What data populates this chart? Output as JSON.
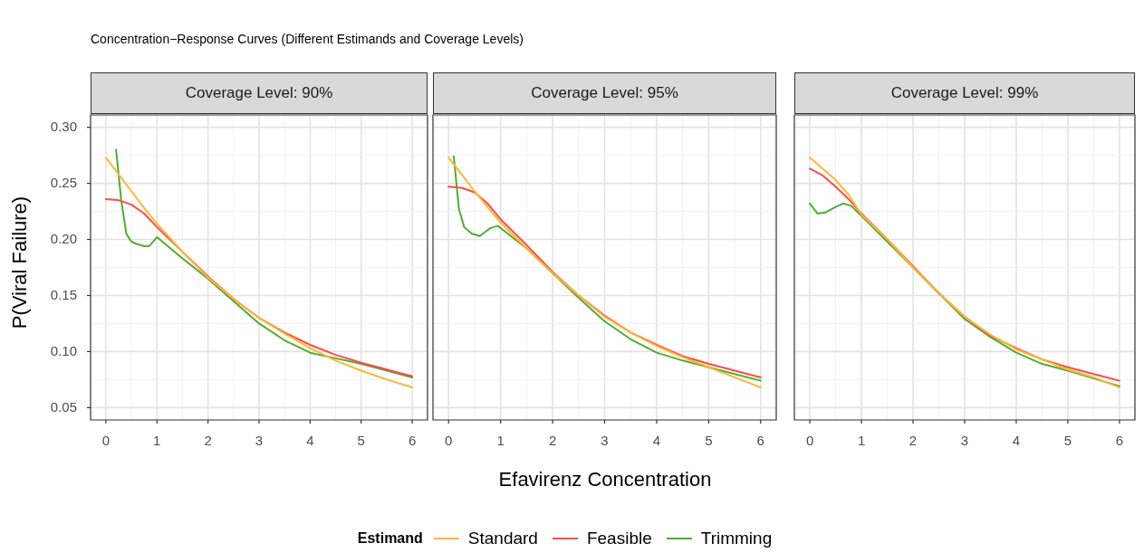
{
  "chart_data": [
    {
      "type": "line",
      "title": "Coverage Level: 90%",
      "ylabel": "P(Viral Failure)",
      "legend": "bottom",
      "legend_title": "Estimand",
      "annotations": [
        "Concentration−Response Curves (Different Estimands and Coverage Levels)"
      ],
      "xlim": [
        -0.3,
        6.3
      ],
      "ylim": [
        0.039,
        0.311
      ],
      "xticks": [
        0,
        {
          "value": 0.5,
          "label": null
        },
        1,
        {
          "value": 1.5,
          "label": null
        },
        2,
        {
          "value": 2.5,
          "label": null
        },
        3,
        {
          "value": 3.5,
          "label": null
        },
        4,
        {
          "value": 4.5,
          "label": null
        },
        5,
        {
          "value": 5.5,
          "label": null
        },
        6
      ],
      "yticks": [
        0.05,
        {
          "value": 0.075,
          "label": null
        },
        {
          "value": 0.1,
          "label": "0.10"
        },
        {
          "value": 0.125,
          "label": null
        },
        0.15,
        {
          "value": 0.175,
          "label": null
        },
        {
          "value": 0.2,
          "label": "0.20"
        },
        {
          "value": 0.225,
          "label": null
        },
        0.25,
        {
          "value": 0.275,
          "label": null
        },
        {
          "value": 0.3,
          "label": "0.30"
        }
      ],
      "grid": true,
      "line_style": "solid",
      "marker": "none",
      "series": [
        {
          "name": "Standard",
          "color": "#ffb631",
          "x": [
            0,
            0.25,
            0.5,
            0.75,
            1,
            1.5,
            2,
            2.5,
            3,
            3.5,
            4,
            4.5,
            5,
            5.5,
            6
          ],
          "values": [
            0.273,
            0.258,
            0.243,
            0.228,
            0.214,
            0.189,
            0.166,
            0.147,
            0.13,
            0.116,
            0.103,
            0.092,
            0.083,
            0.075,
            0.068
          ]
        },
        {
          "name": "Feasible",
          "color": "#ff4a4a",
          "x": [
            0,
            0.25,
            0.5,
            0.75,
            1,
            1.5,
            2,
            2.5,
            3,
            3.5,
            4,
            4.5,
            5,
            5.5,
            6
          ],
          "values": [
            0.236,
            0.235,
            0.231,
            0.223,
            0.211,
            0.189,
            0.167,
            0.147,
            0.13,
            0.117,
            0.106,
            0.097,
            0.09,
            0.084,
            0.078
          ]
        },
        {
          "name": "Trimming",
          "color": "#4fae2e",
          "x": [
            0.2,
            0.3,
            0.4,
            0.5,
            0.6,
            0.75,
            0.85,
            1,
            1.5,
            2,
            2.5,
            3,
            3.5,
            4,
            4.5,
            5,
            5.5,
            6
          ],
          "values": [
            0.28,
            0.235,
            0.205,
            0.198,
            0.196,
            0.194,
            0.194,
            0.202,
            0.183,
            0.165,
            0.145,
            0.125,
            0.11,
            0.099,
            0.094,
            0.089,
            0.083,
            0.077
          ]
        }
      ]
    },
    {
      "type": "line",
      "title": "Coverage Level: 95%",
      "xlabel": "Efavirenz Concentration",
      "tick_labels": "x",
      "xlim": [
        -0.3,
        6.3
      ],
      "ylim": [
        0.039,
        0.311
      ],
      "xticks": [
        0,
        {
          "value": 0.5,
          "label": null
        },
        1,
        {
          "value": 1.5,
          "label": null
        },
        2,
        {
          "value": 2.5,
          "label": null
        },
        3,
        {
          "value": 3.5,
          "label": null
        },
        4,
        {
          "value": 4.5,
          "label": null
        },
        5,
        {
          "value": 5.5,
          "label": null
        },
        6
      ],
      "yticks": [
        0.05,
        {
          "value": 0.075,
          "label": null
        },
        0.1,
        {
          "value": 0.125,
          "label": null
        },
        0.15,
        {
          "value": 0.175,
          "label": null
        },
        0.2,
        {
          "value": 0.225,
          "label": null
        },
        0.25,
        {
          "value": 0.275,
          "label": null
        },
        0.3
      ],
      "grid": true,
      "line_style": "solid",
      "marker": "none",
      "series": [
        {
          "color": "#ffb631",
          "x": [
            0,
            0.25,
            0.5,
            0.75,
            1,
            1.5,
            2,
            2.5,
            3,
            3.5,
            4,
            4.5,
            5,
            5.5,
            6
          ],
          "values": [
            0.273,
            0.258,
            0.243,
            0.229,
            0.215,
            0.192,
            0.17,
            0.15,
            0.131,
            0.117,
            0.105,
            0.095,
            0.086,
            0.077,
            0.068
          ]
        },
        {
          "color": "#ff4a4a",
          "x": [
            0,
            0.25,
            0.5,
            0.75,
            1,
            1.5,
            2,
            2.5,
            3,
            3.5,
            4,
            4.5,
            5,
            5.5,
            6
          ],
          "values": [
            0.247,
            0.246,
            0.242,
            0.232,
            0.218,
            0.195,
            0.171,
            0.15,
            0.132,
            0.117,
            0.106,
            0.096,
            0.089,
            0.083,
            0.077
          ]
        },
        {
          "color": "#4fae2e",
          "x": [
            0.1,
            0.2,
            0.3,
            0.45,
            0.6,
            0.8,
            0.95,
            1.5,
            2,
            2.5,
            3,
            3.5,
            4,
            4.5,
            5,
            5.5,
            6
          ],
          "values": [
            0.274,
            0.227,
            0.211,
            0.205,
            0.203,
            0.21,
            0.212,
            0.192,
            0.17,
            0.148,
            0.127,
            0.111,
            0.099,
            0.092,
            0.086,
            0.08,
            0.074
          ]
        }
      ]
    },
    {
      "type": "line",
      "title": "Coverage Level: 99%",
      "tick_labels": "x",
      "xlim": [
        -0.3,
        6.3
      ],
      "ylim": [
        0.039,
        0.311
      ],
      "xticks": [
        0,
        {
          "value": 0.5,
          "label": null
        },
        1,
        {
          "value": 1.5,
          "label": null
        },
        2,
        {
          "value": 2.5,
          "label": null
        },
        3,
        {
          "value": 3.5,
          "label": null
        },
        4,
        {
          "value": 4.5,
          "label": null
        },
        5,
        {
          "value": 5.5,
          "label": null
        },
        6
      ],
      "yticks": [
        0.05,
        {
          "value": 0.075,
          "label": null
        },
        0.1,
        {
          "value": 0.125,
          "label": null
        },
        0.15,
        {
          "value": 0.175,
          "label": null
        },
        0.2,
        {
          "value": 0.225,
          "label": null
        },
        0.25,
        {
          "value": 0.275,
          "label": null
        },
        0.3
      ],
      "grid": true,
      "line_style": "solid",
      "marker": "none",
      "series": [
        {
          "color": "#ffb631",
          "x": [
            0,
            0.25,
            0.5,
            0.75,
            1,
            1.5,
            2,
            2.5,
            3,
            3.5,
            4,
            4.5,
            5,
            5.5,
            6
          ],
          "values": [
            0.273,
            0.263,
            0.253,
            0.24,
            0.222,
            0.2,
            0.175,
            0.152,
            0.131,
            0.115,
            0.102,
            0.093,
            0.084,
            0.077,
            0.068
          ]
        },
        {
          "color": "#ff4a4a",
          "x": [
            0,
            0.25,
            0.5,
            0.75,
            1,
            1.5,
            2,
            2.5,
            3,
            3.5,
            4,
            4.5,
            5,
            5.5,
            6
          ],
          "values": [
            0.263,
            0.257,
            0.247,
            0.236,
            0.223,
            0.2,
            0.176,
            0.152,
            0.131,
            0.114,
            0.103,
            0.093,
            0.086,
            0.08,
            0.074
          ]
        },
        {
          "color": "#4fae2e",
          "x": [
            0,
            0.15,
            0.3,
            0.5,
            0.65,
            0.8,
            1,
            1.5,
            2,
            2.5,
            3,
            3.5,
            4,
            4.5,
            5,
            5.5,
            6
          ],
          "values": [
            0.232,
            0.223,
            0.224,
            0.229,
            0.232,
            0.23,
            0.221,
            0.198,
            0.175,
            0.152,
            0.129,
            0.113,
            0.099,
            0.089,
            0.083,
            0.076,
            0.069
          ]
        }
      ]
    }
  ]
}
